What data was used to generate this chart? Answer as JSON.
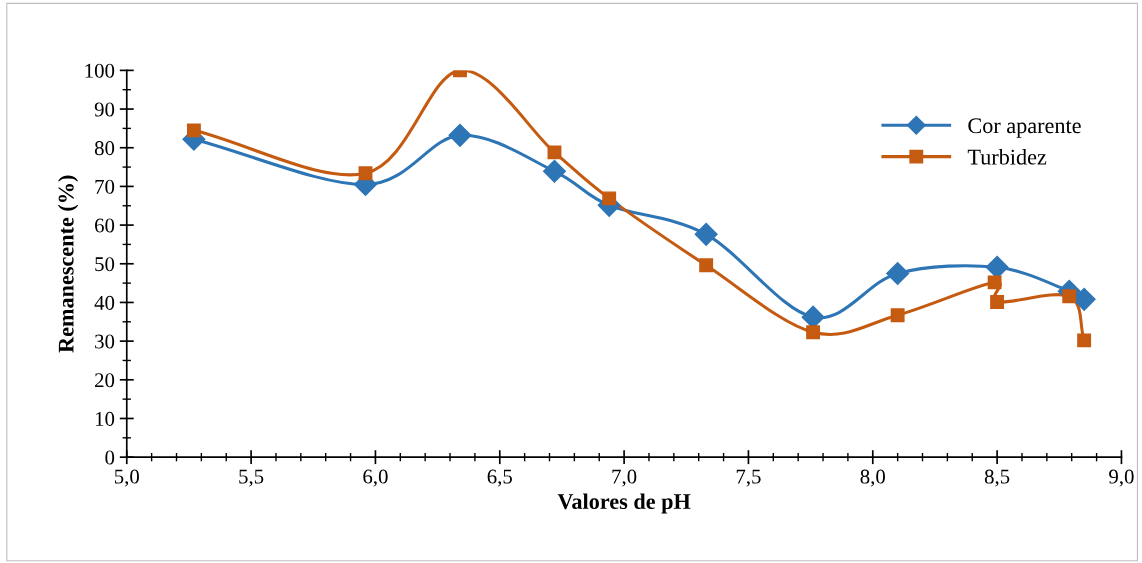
{
  "chart_data": {
    "type": "line",
    "xlabel": "Valores de pH",
    "ylabel": "Remanescente (%)",
    "xlim": [
      5.0,
      9.0
    ],
    "xticks": [
      {
        "value": 5.0,
        "label": "5,0"
      },
      {
        "value": 5.5,
        "label": "5,5"
      },
      {
        "value": 6.0,
        "label": "6,0"
      },
      {
        "value": 6.5,
        "label": "6,5"
      },
      {
        "value": 7.0,
        "label": "7,0"
      },
      {
        "value": 7.5,
        "label": "7,5"
      },
      {
        "value": 8.0,
        "label": "8,0"
      },
      {
        "value": 8.5,
        "label": "8,5"
      },
      {
        "value": 9.0,
        "label": "9,0"
      }
    ],
    "ylim": [
      0,
      100
    ],
    "yticks": [
      0,
      10,
      20,
      30,
      40,
      50,
      60,
      70,
      80,
      90,
      100
    ],
    "grid": false,
    "legend": "top right",
    "series": [
      {
        "name": "Cor aparente",
        "color": "#2e75b6",
        "marker": "diamond",
        "x": [
          5.27,
          5.96,
          6.34,
          6.72,
          6.94,
          7.33,
          7.76,
          8.1,
          8.5,
          8.79,
          8.85
        ],
        "values": [
          82.2,
          70.5,
          83.2,
          73.9,
          65.1,
          57.6,
          36.2,
          47.5,
          49.1,
          42.9,
          40.8
        ]
      },
      {
        "name": "Turbidez",
        "color": "#c55a11",
        "marker": "square",
        "x": [
          5.27,
          5.96,
          6.34,
          6.72,
          6.94,
          7.33,
          7.76,
          8.1,
          8.49,
          8.5,
          8.79,
          8.85
        ],
        "values": [
          84.5,
          73.4,
          100,
          78.8,
          66.9,
          49.6,
          32.3,
          36.7,
          45.2,
          40.1,
          41.6,
          30.2
        ]
      }
    ]
  }
}
